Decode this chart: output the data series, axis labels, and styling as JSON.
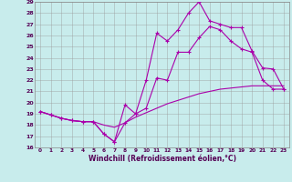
{
  "xlabel": "Windchill (Refroidissement éolien,°C)",
  "bg_color": "#c8ecec",
  "line_color": "#aa00aa",
  "grid_color": "#999999",
  "xlim": [
    -0.5,
    23.5
  ],
  "ylim": [
    16,
    29
  ],
  "xticks": [
    0,
    1,
    2,
    3,
    4,
    5,
    6,
    7,
    8,
    9,
    10,
    11,
    12,
    13,
    14,
    15,
    16,
    17,
    18,
    19,
    20,
    21,
    22,
    23
  ],
  "yticks": [
    16,
    17,
    18,
    19,
    20,
    21,
    22,
    23,
    24,
    25,
    26,
    27,
    28,
    29
  ],
  "line1_x": [
    0,
    1,
    2,
    3,
    4,
    5,
    6,
    7,
    8,
    9,
    10,
    11,
    12,
    13,
    14,
    15,
    16,
    17,
    18,
    19,
    20,
    21,
    22,
    23
  ],
  "line1_y": [
    19.2,
    18.9,
    18.6,
    18.4,
    18.3,
    18.3,
    18.0,
    17.8,
    18.2,
    18.7,
    19.1,
    19.5,
    19.9,
    20.2,
    20.5,
    20.8,
    21.0,
    21.2,
    21.3,
    21.4,
    21.5,
    21.5,
    21.5,
    21.5
  ],
  "line2_x": [
    0,
    1,
    2,
    3,
    4,
    5,
    6,
    7,
    8,
    9,
    10,
    11,
    12,
    13,
    14,
    15,
    16,
    17,
    18,
    19,
    20,
    21,
    22,
    23
  ],
  "line2_y": [
    19.2,
    18.9,
    18.6,
    18.4,
    18.3,
    18.3,
    17.2,
    16.5,
    19.8,
    19.0,
    22.0,
    26.2,
    25.5,
    26.5,
    28.0,
    29.0,
    27.3,
    27.0,
    26.7,
    26.7,
    24.6,
    23.1,
    23.0,
    21.2
  ],
  "line3_x": [
    0,
    1,
    2,
    3,
    4,
    5,
    6,
    7,
    8,
    9,
    10,
    11,
    12,
    13,
    14,
    15,
    16,
    17,
    18,
    19,
    20,
    21,
    22,
    23
  ],
  "line3_y": [
    19.2,
    18.9,
    18.6,
    18.4,
    18.3,
    18.3,
    17.2,
    16.5,
    18.2,
    19.0,
    19.5,
    22.2,
    22.0,
    24.5,
    24.5,
    25.8,
    26.8,
    26.5,
    25.5,
    24.8,
    24.5,
    22.0,
    21.2,
    21.2
  ]
}
